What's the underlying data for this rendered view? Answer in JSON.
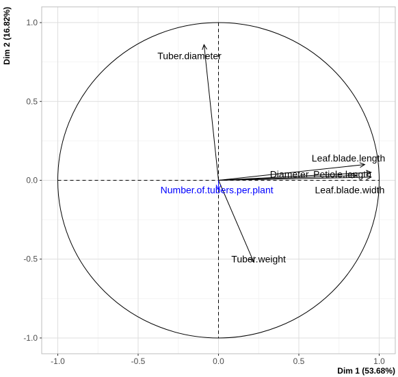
{
  "chart_data": {
    "type": "scatter",
    "subtype": "pca-correlation-circle",
    "xlabel": "Dim 1 (53.68%)",
    "ylabel": "Dim 2 (16.82%)",
    "xlim": [
      -1.1,
      1.1
    ],
    "ylim": [
      -1.1,
      1.1
    ],
    "x_ticks": [
      -1.0,
      -0.5,
      0.0,
      0.5,
      1.0
    ],
    "y_ticks": [
      -1.0,
      -0.5,
      0.0,
      0.5,
      1.0
    ],
    "x_tick_labels": [
      "-1.0",
      "-0.5",
      "0.0",
      "0.5",
      "1.0"
    ],
    "y_tick_labels": [
      "-1.0",
      "-0.5",
      "0.0",
      "0.5",
      "1.0"
    ],
    "grid": true,
    "unit_circle": true,
    "variables": [
      {
        "name": "Tuber.diameter",
        "x": -0.09,
        "y": 0.86,
        "color": "#000000",
        "label_anchor": "start",
        "label_x": -0.38,
        "label_y": 0.79
      },
      {
        "name": "Leaf.blade.length",
        "x": 0.91,
        "y": 0.1,
        "color": "#000000",
        "label_anchor": "start",
        "label_x": 0.58,
        "label_y": 0.14
      },
      {
        "name": "Diameter",
        "x": 0.86,
        "y": 0.03,
        "color": "#000000",
        "label_anchor": "start",
        "label_x": 0.32,
        "label_y": 0.04
      },
      {
        "name": "Petiole.length",
        "x": 0.95,
        "y": 0.05,
        "color": "#000000",
        "label_anchor": "start",
        "label_x": 0.59,
        "label_y": 0.04
      },
      {
        "name": "Leaf.blade.width",
        "x": 0.95,
        "y": 0.02,
        "color": "#000000",
        "label_anchor": "start",
        "label_x": 0.6,
        "label_y": -0.06
      },
      {
        "name": "Tuber.weight",
        "x": 0.22,
        "y": -0.52,
        "color": "#000000",
        "label_anchor": "start",
        "label_x": 0.08,
        "label_y": -0.5
      },
      {
        "name": "Number.of.tubers.per.plant",
        "x": 0.0,
        "y": -0.06,
        "color": "#0000ff",
        "label_anchor": "middle",
        "label_x": -0.01,
        "label_y": -0.06
      }
    ]
  }
}
